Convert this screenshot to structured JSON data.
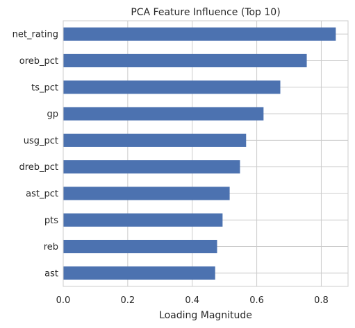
{
  "chart_data": {
    "type": "bar",
    "orientation": "horizontal",
    "title": "PCA Feature Influence (Top 10)",
    "xlabel": "Loading Magnitude",
    "ylabel": "",
    "categories": [
      "net_rating",
      "oreb_pct",
      "ts_pct",
      "gp",
      "usg_pct",
      "dreb_pct",
      "ast_pct",
      "pts",
      "reb",
      "ast"
    ],
    "values": [
      0.845,
      0.755,
      0.673,
      0.621,
      0.567,
      0.548,
      0.516,
      0.494,
      0.477,
      0.471
    ],
    "xlim": [
      0,
      0.883
    ],
    "xticks": [
      0.0,
      0.2,
      0.4,
      0.6,
      0.8
    ],
    "xtick_labels": [
      "0.0",
      "0.2",
      "0.4",
      "0.6",
      "0.8"
    ],
    "grid": true,
    "colors": {
      "bar": "#4c72b0",
      "grid": "#cccccc",
      "spine": "#cccccc",
      "background": "#ffffff"
    }
  }
}
